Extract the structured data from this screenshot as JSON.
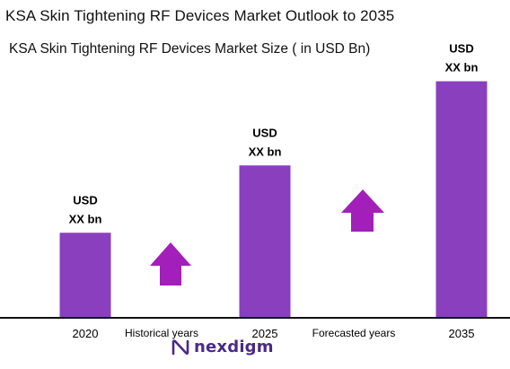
{
  "header": {
    "title": "KSA Skin Tightening RF Devices Market Outlook to 2035",
    "subtitle": "KSA Skin Tightening RF Devices Market Size  ( in USD Bn)"
  },
  "chart_data": {
    "type": "bar",
    "categories": [
      "2020",
      "2025",
      "2035"
    ],
    "values": [
      1,
      1.8,
      2.8
    ],
    "value_labels": [
      {
        "line1": "USD",
        "line2": "XX bn"
      },
      {
        "line1": "USD",
        "line2": "XX bn"
      },
      {
        "line1": "USD",
        "line2": "XX bn"
      }
    ],
    "ylim": [
      0,
      3.2
    ],
    "grid": false,
    "bar_color": "#8a3fbf",
    "arrow_color": "#a21fb9",
    "period_labels": [
      "Historical years",
      "Forecasted years"
    ]
  },
  "logo": {
    "text": "nexdigm",
    "color": "#4a2a86"
  }
}
